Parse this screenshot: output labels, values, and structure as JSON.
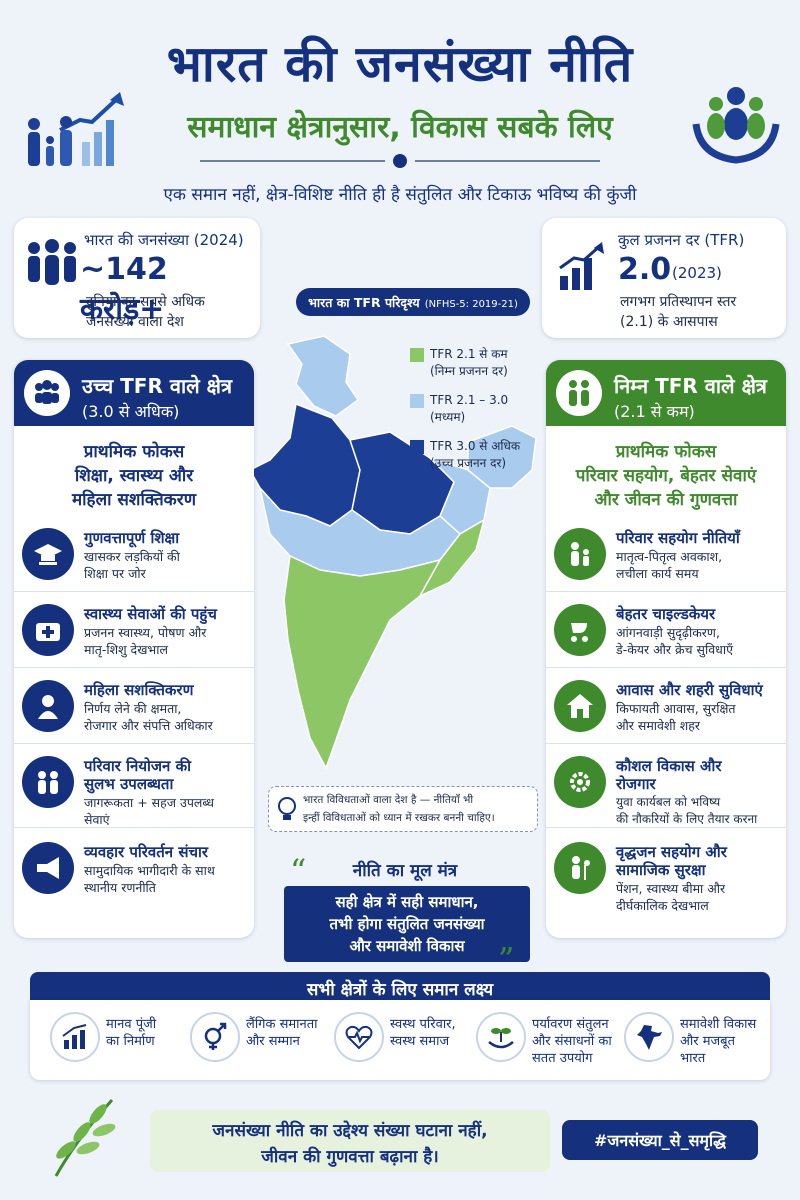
{
  "header": {
    "title": "भारत की जनसंख्या नीति",
    "subtitle": "समाधान क्षेत्रानुसार, विकास सबके लिए",
    "tagline": "एक समान नहीं, क्षेत्र-विशिष्ट नीति ही है संतुलित और टिकाऊ भविष्य की कुंजी"
  },
  "stat_population": {
    "label": "भारत की जनसंख्या (2024)",
    "value": "~142 करोड़+",
    "line1": "दुनिया का सबसे अधिक",
    "line2": "जनसंख्या वाला देश"
  },
  "stat_tfr": {
    "label": "कुल प्रजनन दर (TFR)",
    "value": "2.0",
    "year": "(2023)",
    "line1": "लगभग प्रतिस्थापन स्तर",
    "line2": "(2.1) के आसपास"
  },
  "map": {
    "title": "भारत का TFR परिदृश्य",
    "source": "(NFHS-5: 2019-21)",
    "legend": [
      {
        "line1": "TFR 2.1 से कम",
        "line2": "(निम्न प्रजनन दर)",
        "color": "#8cc665"
      },
      {
        "line1": "TFR 2.1 – 3.0",
        "line2": "(मध्यम)",
        "color": "#a9ccee"
      },
      {
        "line1": "TFR 3.0 से अधिक",
        "line2": "(उच्च प्रजनन दर)",
        "color": "#1c3f95"
      }
    ],
    "note_line1": "भारत विविधताओं वाला देश है — नीतियाँ भी",
    "note_line2": "इन्हीं विविधताओं को ध्यान में रखकर बननी चाहिए।"
  },
  "high_tfr": {
    "title": "उच्च TFR वाले क्षेत्र",
    "sub": "(3.0 से अधिक)",
    "focus_label": "प्राथमिक फोकस",
    "focus_line1": "शिक्षा, स्वास्थ्य और",
    "focus_line2": "महिला सशक्तिकरण",
    "items": [
      {
        "title": "गुणवत्तापूर्ण शिक्षा",
        "desc1": "खासकर लड़कियों की",
        "desc2": "शिक्षा पर जोर",
        "icon": "graduation-cap-icon"
      },
      {
        "title": "स्वास्थ्य सेवाओं की पहुंच",
        "desc1": "प्रजनन स्वास्थ्य, पोषण और",
        "desc2": "मातृ-शिशु देखभाल",
        "icon": "medical-kit-icon"
      },
      {
        "title": "महिला सशक्तिकरण",
        "desc1": "निर्णय लेने की क्षमता,",
        "desc2": "रोजगार और संपत्ति अधिकार",
        "icon": "woman-icon"
      },
      {
        "title": "परिवार नियोजन की",
        "title2": "सुलभ उपलब्धता",
        "desc1": "जागरूकता + सहज उपलब्ध",
        "desc2": "सेवाएं",
        "icon": "family-icon"
      },
      {
        "title": "व्यवहार परिवर्तन संचार",
        "desc1": "सामुदायिक भागीदारी के साथ",
        "desc2": "स्थानीय रणनीति",
        "icon": "megaphone-icon"
      }
    ]
  },
  "low_tfr": {
    "title": "निम्न TFR वाले क्षेत्र",
    "sub": "(2.1 से कम)",
    "focus_label": "प्राथमिक फोकस",
    "focus_line1": "परिवार सहयोग, बेहतर सेवाएं",
    "focus_line2": "और जीवन की गुणवत्ता",
    "items": [
      {
        "title": "परिवार सहयोग नीतियाँ",
        "desc1": "मातृत्व-पितृत्व अवकाश,",
        "desc2": "लचीला कार्य समय",
        "icon": "parent-child-icon"
      },
      {
        "title": "बेहतर चाइल्डकेयर",
        "desc1": "आंगनवाड़ी सुदृढ़ीकरण,",
        "desc2": "डे-केयर और क्रेच सुविधाएँ",
        "icon": "stroller-icon"
      },
      {
        "title": "आवास और शहरी सुविधाएं",
        "desc1": "किफायती आवास, सुरक्षित",
        "desc2": "और समावेशी शहर",
        "icon": "house-icon"
      },
      {
        "title": "कौशल विकास और",
        "title2": "रोजगार",
        "desc1": "युवा कार्यबल को भविष्य",
        "desc2": "की नौकरियों के लिए तैयार करना",
        "icon": "skills-gear-icon"
      },
      {
        "title": "वृद्धजन सहयोग और",
        "title2": "सामाजिक सुरक्षा",
        "desc1": "पेंशन, स्वास्थ्य बीमा और",
        "desc2": "दीर्घकालिक देखभाल",
        "icon": "elderly-care-icon"
      }
    ]
  },
  "mantra": {
    "heading": "नीति का मूल मंत्र",
    "line1": "सही क्षेत्र में सही समाधान,",
    "line2": "तभी होगा संतुलित जनसंख्या",
    "line3": "और समावेशी विकास"
  },
  "goals": {
    "heading": "सभी क्षेत्रों के लिए समान लक्ष्य",
    "items": [
      {
        "line1": "मानव पूंजी",
        "line2": "का निर्माण",
        "line3": "",
        "icon": "growth-chart-icon"
      },
      {
        "line1": "लैंगिक समानता",
        "line2": "और सम्मान",
        "line3": "",
        "icon": "gender-equality-icon"
      },
      {
        "line1": "स्वस्थ परिवार,",
        "line2": "स्वस्थ समाज",
        "line3": "",
        "icon": "heartbeat-icon"
      },
      {
        "line1": "पर्यावरण संतुलन",
        "line2": "और संसाधनों का",
        "line3": "सतत उपयोग",
        "icon": "plant-hand-icon"
      },
      {
        "line1": "समावेशी विकास",
        "line2": "और मजबूत",
        "line3": "भारत",
        "icon": "india-map-icon"
      }
    ]
  },
  "footer": {
    "line1": "जनसंख्या नीति का उद्देश्य संख्या घटाना नहीं,",
    "line2": "जीवन की गुणवत्ता बढ़ाना है।",
    "hashtag": "#जनसंख्या_से_समृद्धि"
  },
  "colors": {
    "navy": "#15317e",
    "green": "#3f8a2c",
    "map_low": "#8cc665",
    "map_mid": "#a9ccee",
    "map_high": "#1c3f95"
  }
}
